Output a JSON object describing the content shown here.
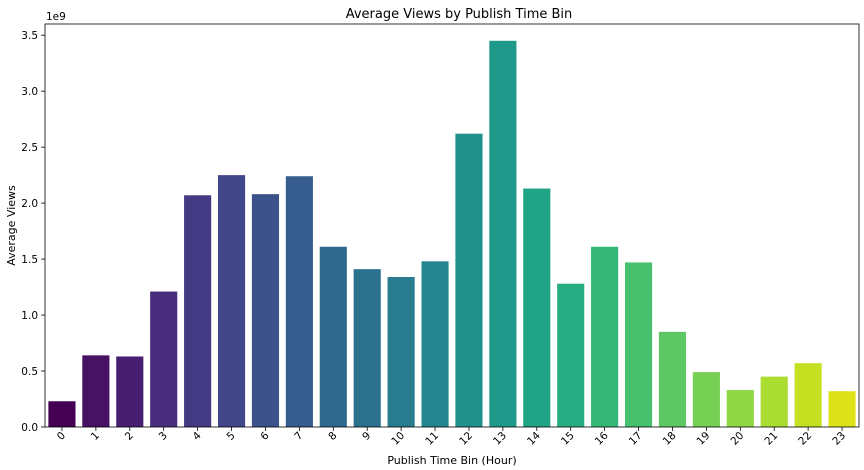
{
  "chart_data": {
    "type": "bar",
    "title": "Average Views by Publish Time Bin",
    "xlabel": "Publish Time Bin (Hour)",
    "ylabel": "Average Views",
    "y_scale_label": "1e9",
    "y_multiplier": 1000000000,
    "ylim": [
      0,
      3.6
    ],
    "yticks": [
      0.0,
      0.5,
      1.0,
      1.5,
      2.0,
      2.5,
      3.0,
      3.5
    ],
    "ytick_labels": [
      "0.0",
      "0.5",
      "1.0",
      "1.5",
      "2.0",
      "2.5",
      "3.0",
      "3.5"
    ],
    "categories": [
      "0",
      "1",
      "2",
      "3",
      "4",
      "5",
      "6",
      "7",
      "8",
      "9",
      "10",
      "11",
      "12",
      "13",
      "14",
      "15",
      "16",
      "17",
      "18",
      "19",
      "20",
      "21",
      "22",
      "23"
    ],
    "values": [
      0.23,
      0.64,
      0.63,
      1.21,
      2.07,
      2.25,
      2.08,
      2.24,
      1.61,
      1.41,
      1.34,
      1.48,
      2.62,
      3.45,
      2.13,
      1.28,
      1.61,
      1.47,
      0.85,
      0.49,
      0.33,
      0.45,
      0.57,
      0.32
    ],
    "colors": [
      "#440154",
      "#471164",
      "#481f70",
      "#472d7b",
      "#443a83",
      "#404688",
      "#3b528b",
      "#365d8d",
      "#31688e",
      "#2c728e",
      "#287c8e",
      "#24868e",
      "#21918c",
      "#1f9a8a",
      "#20a486",
      "#27ad81",
      "#35b779",
      "#47c16e",
      "#5dc863",
      "#75d054",
      "#8fd744",
      "#aadc32",
      "#c5e021",
      "#dde318"
    ],
    "grid": false,
    "legend": "none"
  }
}
